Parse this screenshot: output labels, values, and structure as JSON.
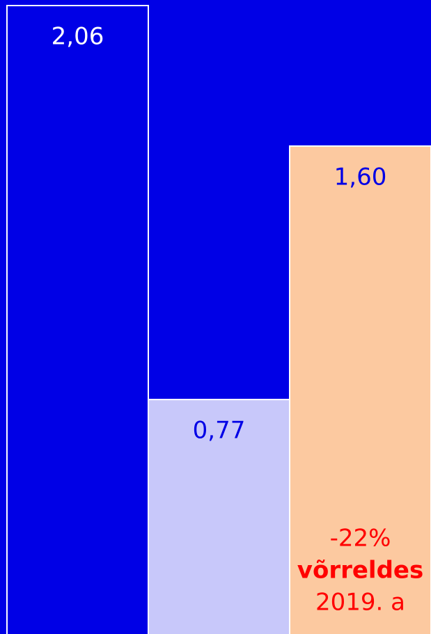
{
  "chart_data": {
    "type": "bar",
    "values": [
      2.06,
      0.77,
      1.6
    ],
    "value_labels": [
      "2,06",
      "0,77",
      "1,60"
    ],
    "colors": [
      "#0000e6",
      "#c8c8fa",
      "#fcc9a0"
    ],
    "label_colors": [
      "#ffffff",
      "#0000e6",
      "#0000e6"
    ],
    "annotation": [
      "-22%",
      "võrreldes",
      "2019. a"
    ],
    "annotation_color": "#ff0000"
  }
}
